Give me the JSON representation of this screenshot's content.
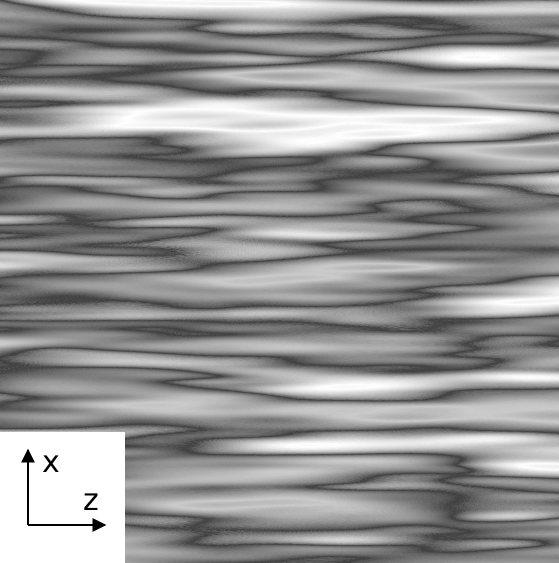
{
  "axes": {
    "vertical_label": "x",
    "horizontal_label": "z"
  }
}
